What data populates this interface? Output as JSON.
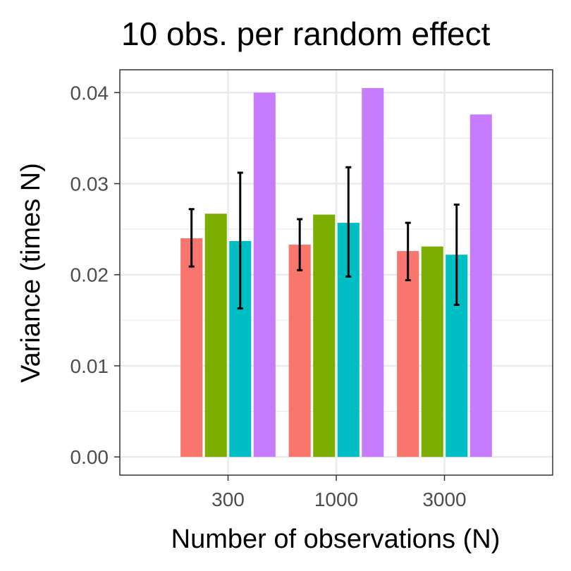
{
  "chart_data": {
    "type": "bar",
    "title": "10 obs. per random effect",
    "xlabel": "Number of observations (N)",
    "ylabel": "Variance (times N)",
    "categories": [
      "300",
      "1000",
      "3000"
    ],
    "ylim": [
      -0.002,
      0.0425
    ],
    "yticks": [
      0.0,
      0.01,
      0.02,
      0.03,
      0.04
    ],
    "ytick_labels": [
      "0.00",
      "0.01",
      "0.02",
      "0.03",
      "0.04"
    ],
    "grid": true,
    "legend": "none",
    "series": [
      {
        "color": "#F8766D",
        "values": [
          0.024,
          0.0233,
          0.0226
        ],
        "error_low": [
          0.0209,
          0.0205,
          0.0194
        ],
        "error_high": [
          0.0272,
          0.0261,
          0.0257
        ]
      },
      {
        "color": "#7CAE00",
        "values": [
          0.0267,
          0.0266,
          0.0231
        ]
      },
      {
        "color": "#00BFC4",
        "values": [
          0.0237,
          0.0257,
          0.0222
        ],
        "error_low": [
          0.0163,
          0.0198,
          0.0167
        ],
        "error_high": [
          0.0312,
          0.0318,
          0.0277
        ]
      },
      {
        "color": "#C77CFF",
        "values": [
          0.04,
          0.0405,
          0.0376
        ]
      }
    ]
  }
}
